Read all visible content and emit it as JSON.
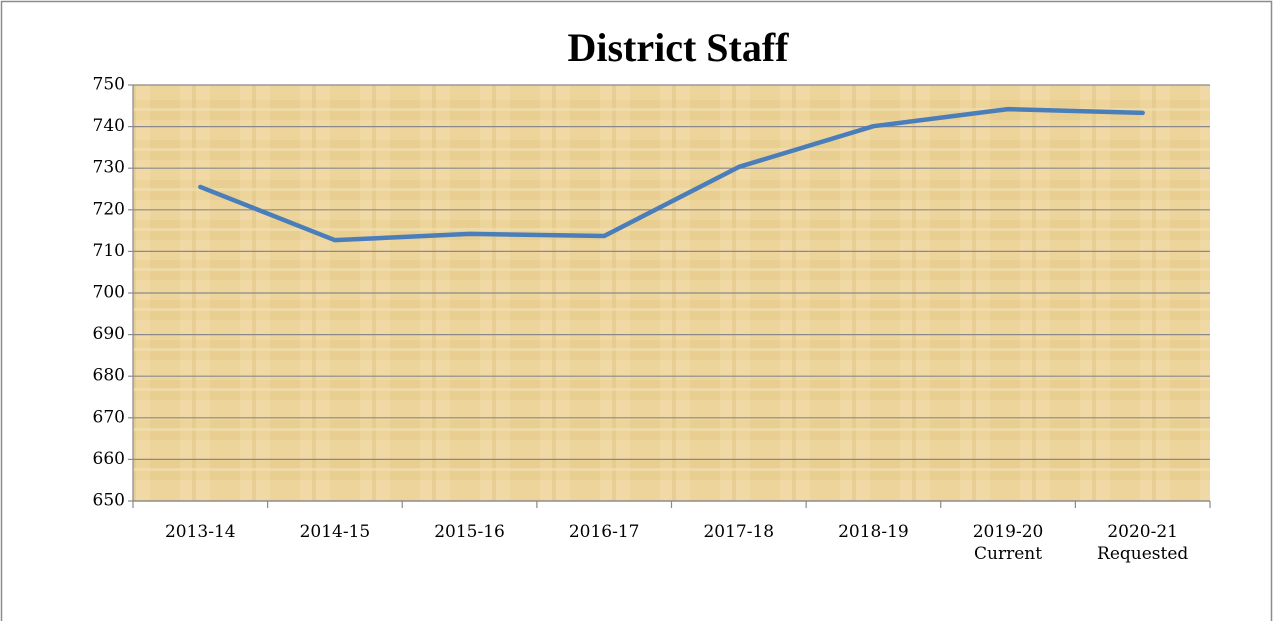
{
  "chart_data": {
    "type": "line",
    "title": "District Staff",
    "categories": [
      "2013-14",
      "2014-15",
      "2015-16",
      "2016-17",
      "2017-18",
      "2018-19",
      "2019-20\nCurrent",
      "2020-21\nRequested"
    ],
    "values": [
      725.5,
      712.7,
      714.2,
      713.7,
      730.3,
      740.1,
      744.2,
      743.3
    ],
    "color": "#4a7ebb",
    "ylim": [
      650,
      750
    ],
    "yticks": [
      650,
      660,
      670,
      680,
      690,
      700,
      710,
      720,
      730,
      740,
      750
    ],
    "grid": true
  }
}
